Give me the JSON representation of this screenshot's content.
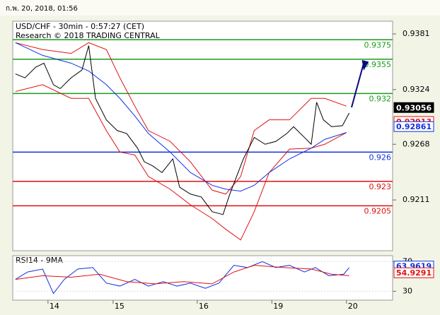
{
  "header": "ก.พ. 20, 2018, 01:56",
  "chart_data": [
    {
      "type": "line",
      "title": "USD/CHF - 30min - 0:57:27 (CET)",
      "subtitle": "Research © 2018 TRADING CENTRAL",
      "xlim": [
        0,
        280
      ],
      "ylim": [
        0.9159,
        0.9394
      ],
      "yticks": [
        0.9381,
        0.9324,
        0.9268,
        0.9211
      ],
      "levels": [
        0.9375,
        0.9355,
        0.932,
        0.926,
        0.923,
        0.9205
      ],
      "level_colors": [
        "#1a9a1a",
        "#1a9a1a",
        "#1a9a1a",
        "#1030e0",
        "#e01010",
        "#e01010"
      ],
      "value_tags": [
        {
          "value": 0.93056,
          "color": "#000000",
          "filled": true
        },
        {
          "value": 0.92913,
          "color": "#e01010",
          "filled": false
        },
        {
          "value": 0.92861,
          "color": "#1030e0",
          "filled": false
        }
      ],
      "series": [
        {
          "color": "#e01010",
          "x": [
            2,
            22,
            43,
            56,
            69,
            79,
            90,
            100,
            116,
            131,
            147,
            157,
            168,
            178,
            189,
            204,
            220,
            230,
            246
          ],
          "values": [
            0.9372,
            0.9365,
            0.9361,
            0.9372,
            0.9365,
            0.9336,
            0.9307,
            0.9282,
            0.9271,
            0.925,
            0.9221,
            0.9217,
            0.9235,
            0.9282,
            0.9293,
            0.9293,
            0.9315,
            0.9315,
            0.9307
          ]
        },
        {
          "color": "#e01010",
          "x": [
            2,
            22,
            43,
            56,
            69,
            79,
            90,
            100,
            116,
            131,
            147,
            157,
            168,
            178,
            189,
            204,
            220,
            230,
            246
          ],
          "values": [
            0.9322,
            0.9329,
            0.9315,
            0.9315,
            0.9282,
            0.926,
            0.9257,
            0.9235,
            0.9222,
            0.9206,
            0.9192,
            0.9181,
            0.917,
            0.9199,
            0.9239,
            0.9263,
            0.9264,
            0.9268,
            0.928
          ]
        },
        {
          "color": "#1030e0",
          "x": [
            2,
            22,
            43,
            56,
            69,
            79,
            90,
            100,
            116,
            131,
            147,
            157,
            168,
            178,
            189,
            204,
            220,
            230,
            246
          ],
          "values": [
            0.9372,
            0.9359,
            0.9351,
            0.9343,
            0.9329,
            0.9315,
            0.9297,
            0.9279,
            0.926,
            0.9239,
            0.9226,
            0.9222,
            0.922,
            0.9226,
            0.9239,
            0.9253,
            0.9264,
            0.9273,
            0.928
          ]
        },
        {
          "color": "#000000",
          "x": [
            2,
            9,
            17,
            23,
            30,
            35,
            43,
            51,
            56,
            61,
            69,
            77,
            84,
            92,
            97,
            103,
            110,
            118,
            123,
            131,
            139,
            147,
            155,
            160,
            165,
            170,
            178,
            186,
            194,
            202,
            207,
            215,
            220,
            224,
            229,
            235,
            243,
            248
          ],
          "values": [
            0.934,
            0.9336,
            0.9347,
            0.9351,
            0.9329,
            0.9325,
            0.9336,
            0.9344,
            0.9369,
            0.9315,
            0.9293,
            0.9282,
            0.9279,
            0.9264,
            0.925,
            0.9246,
            0.9239,
            0.9253,
            0.9224,
            0.9217,
            0.9214,
            0.9199,
            0.9196,
            0.9217,
            0.9235,
            0.9253,
            0.9275,
            0.9268,
            0.9271,
            0.9279,
            0.9286,
            0.9275,
            0.9268,
            0.9311,
            0.9293,
            0.9286,
            0.9287,
            0.93
          ]
        }
      ]
    },
    {
      "type": "line",
      "title": "RSI14 - 9MA",
      "xlim": [
        0,
        280
      ],
      "ylim": [
        18,
        78
      ],
      "yticks": [
        30,
        70
      ],
      "xticks": [
        {
          "value": 26,
          "label": "14"
        },
        {
          "value": 74,
          "label": "15"
        },
        {
          "value": 136,
          "label": "16"
        },
        {
          "value": 191,
          "label": "19"
        },
        {
          "value": 246,
          "label": "20"
        }
      ],
      "value_tags": [
        {
          "value": 63.9619,
          "color": "#1030e0",
          "filled": false
        },
        {
          "value": 54.9291,
          "color": "#e01010",
          "filled": false
        }
      ],
      "series": [
        {
          "color": "#1030e0",
          "x": [
            2,
            11,
            22,
            30,
            38,
            48,
            59,
            69,
            79,
            90,
            100,
            111,
            121,
            131,
            142,
            152,
            163,
            173,
            184,
            194,
            204,
            215,
            223,
            233,
            244,
            248
          ],
          "values": [
            46,
            56,
            60,
            27,
            46,
            60,
            62,
            41,
            37,
            46,
            37,
            43,
            37,
            41,
            34,
            41,
            65,
            62,
            70,
            62,
            65,
            56,
            62,
            51,
            53,
            62
          ]
        },
        {
          "color": "#e01010",
          "x": [
            2,
            22,
            43,
            64,
            84,
            105,
            126,
            147,
            163,
            178,
            199,
            220,
            235,
            248
          ],
          "values": [
            46,
            51,
            49,
            53,
            43,
            40,
            43,
            40,
            56,
            65,
            62,
            60,
            53,
            51
          ]
        }
      ]
    }
  ]
}
